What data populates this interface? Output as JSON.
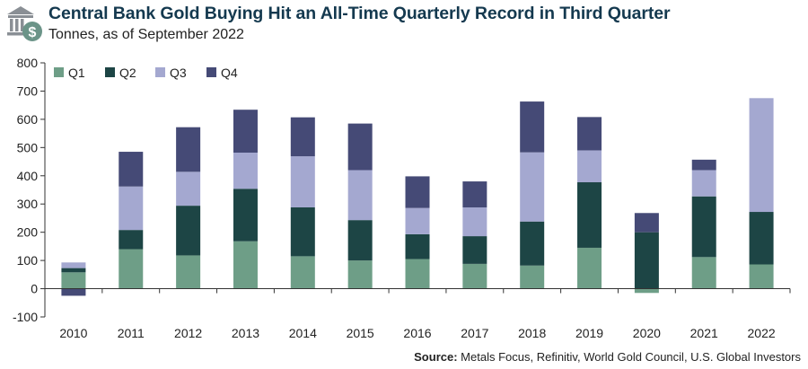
{
  "header": {
    "title": "Central Bank Gold Buying Hit an All-Time Quarterly Record in Third Quarter",
    "subtitle": "Tonnes, as of September 2022"
  },
  "logo": {
    "icon": "bank-dollar-icon",
    "colors": {
      "building": "#8a8f95",
      "coin": "#6b9488"
    }
  },
  "source": {
    "label": "Source:",
    "text": "Metals Focus, Refinitiv, World Gold Council, U.S. Global Investors"
  },
  "colors": {
    "Q1": "#6e9e87",
    "Q2": "#1d4545",
    "Q3": "#a4a8d0",
    "Q4": "#454a76",
    "axis": "#333333"
  },
  "chart_data": {
    "type": "bar",
    "stacked": true,
    "title": "Central Bank Gold Buying Hit an All-Time Quarterly Record in Third Quarter",
    "ylabel": "",
    "xlabel": "",
    "ylim": [
      -100,
      800
    ],
    "yticks": [
      "-100",
      "0",
      "100",
      "200",
      "300",
      "400",
      "500",
      "600",
      "700",
      "800"
    ],
    "grid": false,
    "legend": "top-left",
    "categories": [
      "2010",
      "2011",
      "2012",
      "2013",
      "2014",
      "2015",
      "2016",
      "2017",
      "2018",
      "2019",
      "2020",
      "2021",
      "2022"
    ],
    "series": [
      {
        "name": "Q1",
        "color": "#6e9e87",
        "values": [
          58,
          140,
          118,
          168,
          115,
          100,
          105,
          88,
          82,
          145,
          -15,
          112,
          86
        ]
      },
      {
        "name": "Q2",
        "color": "#1d4545",
        "values": [
          15,
          68,
          176,
          186,
          173,
          143,
          88,
          98,
          156,
          232,
          200,
          215,
          186
        ]
      },
      {
        "name": "Q3",
        "color": "#a4a8d0",
        "values": [
          20,
          154,
          120,
          128,
          181,
          177,
          93,
          102,
          245,
          113,
          0,
          93,
          403
        ]
      },
      {
        "name": "Q4",
        "color": "#454a76",
        "values": [
          -25,
          123,
          158,
          152,
          138,
          165,
          112,
          92,
          180,
          118,
          68,
          37,
          0
        ]
      }
    ]
  }
}
